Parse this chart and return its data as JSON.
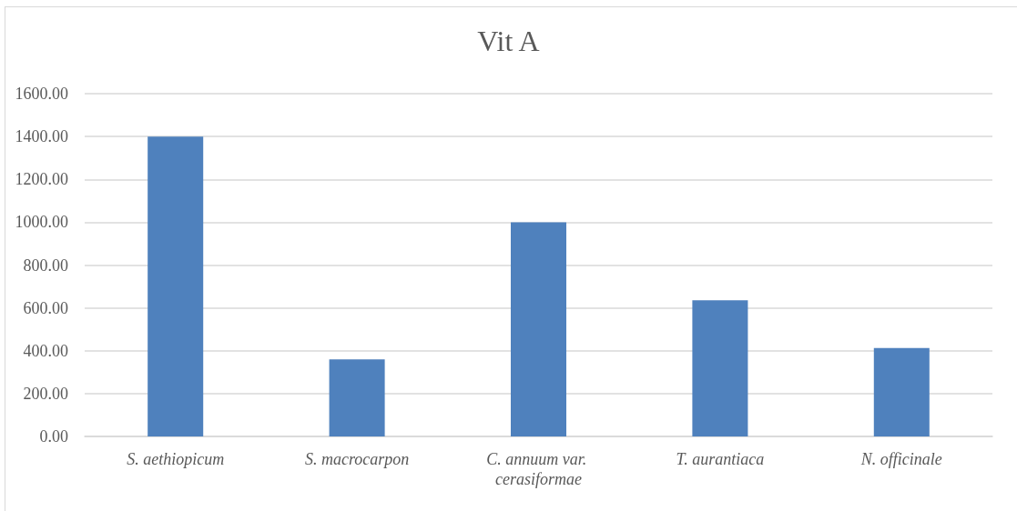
{
  "chart_data": {
    "type": "bar",
    "title": "Vit A",
    "categories": [
      "S. aethiopicum",
      "S. macrocarpon",
      "C. annuum var. cerasiformae",
      "T. aurantiaca",
      "N. officinale"
    ],
    "values": [
      1400,
      360,
      1000,
      636,
      413
    ],
    "color": "#4f81bd",
    "ylim": [
      0,
      1600
    ],
    "yticks": [
      {
        "value": 0,
        "label": "0.00"
      },
      {
        "value": 200,
        "label": "200.00"
      },
      {
        "value": 400,
        "label": "400.00"
      },
      {
        "value": 600,
        "label": "600.00"
      },
      {
        "value": 800,
        "label": "800.00"
      },
      {
        "value": 1000,
        "label": "1000.00"
      },
      {
        "value": 1200,
        "label": "1200.00"
      },
      {
        "value": 1400,
        "label": "1400.00"
      },
      {
        "value": 1600,
        "label": "1600.00"
      }
    ],
    "grid": "y"
  }
}
